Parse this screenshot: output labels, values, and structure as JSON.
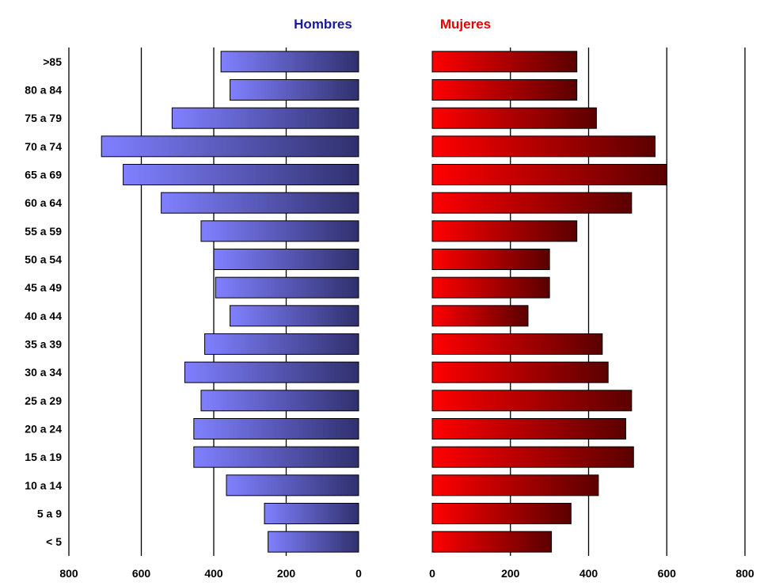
{
  "chart_data": {
    "type": "bar",
    "orientation": "horizontal",
    "layout": "population-pyramid",
    "categories": [
      "< 5",
      "5 a 9",
      "10 a 14",
      "15 a 19",
      "20 a 24",
      "25 a 29",
      "30 a 34",
      "35 a 39",
      "40 a 44",
      "45 a 49",
      "50 a 54",
      "55 a 59",
      "60 a 64",
      "65 a 69",
      "70 a 74",
      "75 a 79",
      "80 a 84",
      ">85"
    ],
    "series": [
      {
        "name": "Hombres",
        "color": "#1a1a9a",
        "gradient": [
          "#8080ff",
          "#30306e"
        ],
        "values": [
          250,
          260,
          365,
          455,
          455,
          435,
          480,
          425,
          355,
          395,
          400,
          435,
          545,
          650,
          710,
          515,
          355,
          380
        ]
      },
      {
        "name": "Mujeres",
        "color": "#e60000",
        "gradient": [
          "#ff0000",
          "#5a0000"
        ],
        "values": [
          305,
          355,
          425,
          515,
          495,
          510,
          450,
          435,
          245,
          300,
          300,
          370,
          510,
          600,
          570,
          420,
          370,
          370
        ]
      }
    ],
    "x_ticks_left": [
      "800",
      "600",
      "400",
      "200",
      "0"
    ],
    "x_ticks_right": [
      "0",
      "200",
      "400",
      "600",
      "800"
    ],
    "xlim": [
      0,
      800
    ],
    "grid": true,
    "legend": "top-center"
  }
}
